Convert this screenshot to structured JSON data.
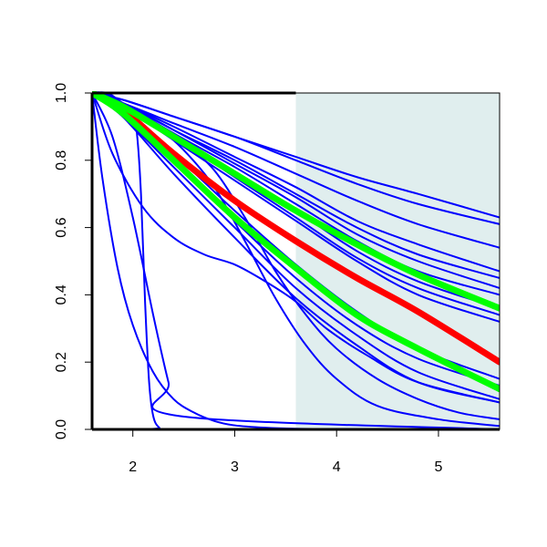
{
  "chart_data": {
    "type": "line",
    "title": "",
    "xlabel": "",
    "ylabel": "",
    "xlim": [
      1.6,
      5.6
    ],
    "ylim": [
      0.0,
      1.0
    ],
    "grid": false,
    "legend": "none",
    "x_ticks": [
      "2",
      "3",
      "4",
      "5"
    ],
    "y_ticks": [
      "0.0",
      "0.2",
      "0.4",
      "0.6",
      "0.8",
      "1.0"
    ],
    "shaded_region": {
      "x_from": 3.6,
      "x_to": 5.6,
      "color": "#e0eeee"
    },
    "colors": {
      "blue": "#0000ff",
      "red": "#ff0000",
      "green": "#00ff00",
      "axis": "#000000"
    },
    "series": [
      {
        "color": "blue",
        "thick": false,
        "x": [
          1.6,
          1.9,
          2.4,
          3.0,
          3.6,
          4.2,
          4.8,
          5.6
        ],
        "y": [
          1.0,
          0.98,
          0.93,
          0.87,
          0.81,
          0.75,
          0.7,
          0.63
        ]
      },
      {
        "color": "blue",
        "thick": false,
        "x": [
          1.6,
          1.9,
          2.4,
          3.0,
          3.6,
          4.2,
          4.8,
          5.6
        ],
        "y": [
          1.0,
          0.98,
          0.93,
          0.87,
          0.8,
          0.73,
          0.67,
          0.61
        ]
      },
      {
        "color": "blue",
        "thick": false,
        "x": [
          1.6,
          1.9,
          2.4,
          3.0,
          3.6,
          4.2,
          4.8,
          5.6
        ],
        "y": [
          1.0,
          0.97,
          0.91,
          0.84,
          0.76,
          0.68,
          0.61,
          0.54
        ]
      },
      {
        "color": "blue",
        "thick": false,
        "x": [
          1.6,
          1.9,
          2.4,
          3.0,
          3.6,
          4.2,
          4.8,
          5.6
        ],
        "y": [
          1.0,
          0.97,
          0.9,
          0.81,
          0.72,
          0.62,
          0.55,
          0.47
        ]
      },
      {
        "color": "blue",
        "thick": false,
        "x": [
          1.6,
          1.9,
          2.4,
          3.0,
          3.6,
          4.2,
          4.8,
          5.6
        ],
        "y": [
          1.0,
          0.97,
          0.89,
          0.8,
          0.7,
          0.6,
          0.52,
          0.45
        ]
      },
      {
        "color": "blue",
        "thick": false,
        "x": [
          1.6,
          1.9,
          2.4,
          3.0,
          3.6,
          4.2,
          4.8,
          5.6
        ],
        "y": [
          1.0,
          0.97,
          0.89,
          0.79,
          0.69,
          0.58,
          0.5,
          0.42
        ]
      },
      {
        "color": "blue",
        "thick": false,
        "x": [
          1.6,
          1.9,
          2.4,
          3.0,
          3.6,
          4.2,
          4.8,
          5.6
        ],
        "y": [
          1.0,
          0.97,
          0.88,
          0.78,
          0.67,
          0.56,
          0.47,
          0.4
        ]
      },
      {
        "color": "blue",
        "thick": false,
        "x": [
          1.6,
          1.9,
          2.4,
          3.0,
          3.6,
          4.2,
          4.8,
          5.6
        ],
        "y": [
          1.0,
          0.96,
          0.88,
          0.76,
          0.65,
          0.53,
          0.44,
          0.36
        ]
      },
      {
        "color": "blue",
        "thick": false,
        "x": [
          1.6,
          1.9,
          2.4,
          3.0,
          3.6,
          4.2,
          4.8,
          5.6
        ],
        "y": [
          1.0,
          0.96,
          0.87,
          0.75,
          0.63,
          0.51,
          0.42,
          0.34
        ]
      },
      {
        "color": "blue",
        "thick": false,
        "x": [
          1.6,
          1.9,
          2.4,
          3.0,
          3.6,
          4.2,
          4.8,
          5.6
        ],
        "y": [
          1.0,
          0.96,
          0.86,
          0.74,
          0.62,
          0.5,
          0.4,
          0.32
        ]
      },
      {
        "color": "blue",
        "thick": false,
        "x": [
          1.6,
          1.9,
          2.4,
          3.0,
          3.6,
          4.2,
          4.8,
          5.6
        ],
        "y": [
          1.0,
          0.95,
          0.82,
          0.65,
          0.49,
          0.35,
          0.24,
          0.15
        ]
      },
      {
        "color": "blue",
        "thick": false,
        "x": [
          1.6,
          1.9,
          2.4,
          3.0,
          3.6,
          4.2,
          4.8,
          5.6
        ],
        "y": [
          1.0,
          0.94,
          0.8,
          0.62,
          0.45,
          0.31,
          0.21,
          0.13
        ]
      },
      {
        "color": "blue",
        "thick": false,
        "x": [
          1.6,
          1.9,
          2.4,
          3.0,
          3.6,
          4.2,
          4.8,
          5.6
        ],
        "y": [
          1.0,
          0.93,
          0.78,
          0.6,
          0.42,
          0.28,
          0.17,
          0.09
        ]
      },
      {
        "color": "blue",
        "thick": false,
        "x": [
          1.6,
          1.9,
          2.4,
          3.0,
          3.6,
          4.2,
          4.8,
          5.6
        ],
        "y": [
          1.0,
          0.93,
          0.76,
          0.57,
          0.39,
          0.25,
          0.14,
          0.08
        ]
      },
      {
        "color": "blue",
        "thick": false,
        "x": [
          1.6,
          1.7,
          1.9,
          2.2,
          2.5,
          2.8,
          3.1,
          3.4,
          3.7,
          4.0,
          4.4,
          4.8,
          5.2,
          5.6
        ],
        "y": [
          1.0,
          1.0,
          0.97,
          0.91,
          0.85,
          0.77,
          0.63,
          0.47,
          0.34,
          0.24,
          0.15,
          0.09,
          0.05,
          0.03
        ]
      },
      {
        "color": "blue",
        "thick": false,
        "x": [
          1.6,
          1.75,
          1.9,
          2.2,
          2.5,
          2.8,
          3.1,
          3.4,
          3.7,
          4.0,
          4.4,
          5.0,
          5.6
        ],
        "y": [
          1.0,
          1.0,
          0.97,
          0.91,
          0.83,
          0.72,
          0.56,
          0.39,
          0.25,
          0.15,
          0.07,
          0.03,
          0.01
        ]
      },
      {
        "color": "blue",
        "thick": false,
        "x": [
          1.6,
          1.8,
          2.1,
          2.4,
          2.7,
          3.0,
          3.3,
          3.6,
          3.9,
          4.3,
          4.8,
          5.6
        ],
        "y": [
          1.0,
          0.82,
          0.66,
          0.57,
          0.52,
          0.49,
          0.44,
          0.38,
          0.3,
          0.22,
          0.14,
          0.08
        ]
      },
      {
        "color": "blue",
        "thick": false,
        "x": [
          1.6,
          1.7,
          1.85,
          2.0,
          2.2,
          2.4,
          2.6,
          2.8,
          3.0,
          3.3,
          3.6,
          4.0,
          4.5,
          5.0,
          5.6
        ],
        "y": [
          1.0,
          0.75,
          0.48,
          0.31,
          0.17,
          0.09,
          0.05,
          0.025,
          0.012,
          0.005,
          0.002,
          0.001,
          0.0005,
          0.0003,
          0.0002
        ]
      },
      {
        "color": "blue",
        "thick": false,
        "x": [
          1.6,
          1.9,
          2.0,
          2.04,
          2.08,
          2.12,
          2.16,
          2.2,
          2.26,
          2.35,
          5.6
        ],
        "y": [
          1.0,
          0.96,
          0.93,
          0.88,
          0.7,
          0.38,
          0.14,
          0.04,
          0.005,
          0.0,
          0.0
        ]
      },
      {
        "color": "blue",
        "thick": false,
        "x": [
          1.6,
          1.8,
          2.0,
          2.2,
          2.35,
          2.45,
          5.6
        ],
        "y": [
          1.0,
          0.87,
          0.63,
          0.34,
          0.14,
          0.04,
          0.0
        ]
      },
      {
        "color": "red",
        "thick": true,
        "x": [
          1.6,
          1.9,
          2.4,
          3.0,
          3.6,
          4.2,
          4.8,
          5.6
        ],
        "y": [
          1.0,
          0.95,
          0.82,
          0.68,
          0.56,
          0.45,
          0.35,
          0.2
        ]
      },
      {
        "color": "green",
        "thick": true,
        "x": [
          1.6,
          1.9,
          2.4,
          3.0,
          3.6,
          4.2,
          4.8,
          5.6
        ],
        "y": [
          1.0,
          0.96,
          0.87,
          0.76,
          0.65,
          0.55,
          0.46,
          0.36
        ]
      },
      {
        "color": "green",
        "thick": true,
        "x": [
          1.6,
          1.9,
          2.4,
          3.0,
          3.6,
          4.2,
          4.8,
          5.6
        ],
        "y": [
          1.0,
          0.94,
          0.8,
          0.63,
          0.48,
          0.34,
          0.24,
          0.12
        ]
      }
    ]
  }
}
